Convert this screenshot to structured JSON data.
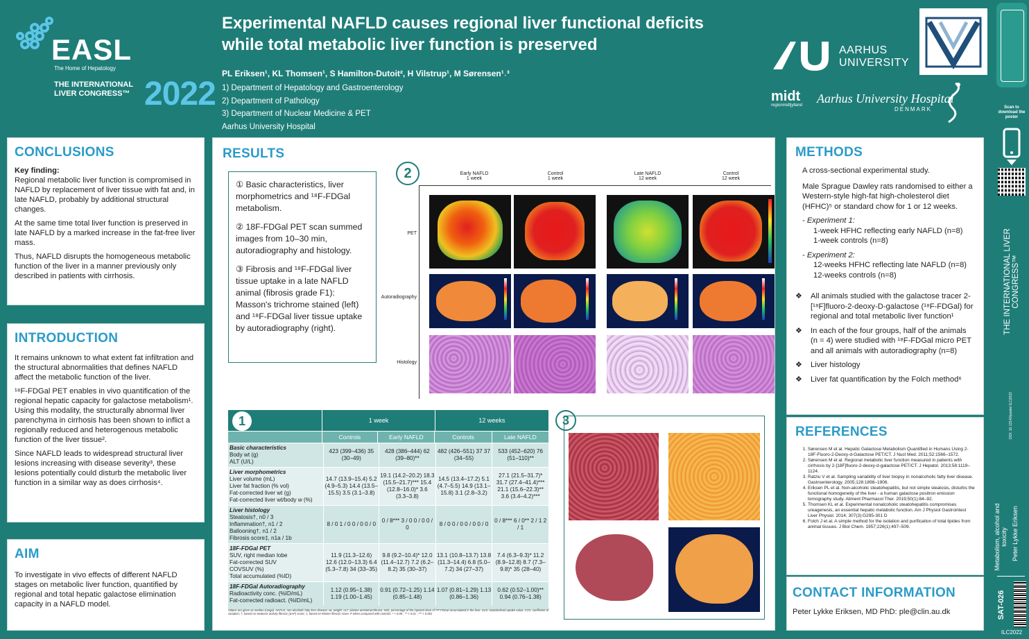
{
  "header": {
    "logo_text": "EASL",
    "logo_tagline": "The Home of Hepatology",
    "congress_line1": "THE INTERNATIONAL",
    "congress_line2": "LIVER CONGRESS™",
    "year": "2022",
    "title_line1": "Experimental NAFLD causes regional liver functional deficits",
    "title_line2": "while total metabolic liver function is preserved",
    "authors": "PL Eriksen¹, KL Thomsen¹, S Hamilton-Dutoit², H Vilstrup¹, M Sørensen¹˒³",
    "affil1": "1) Department of Hepatology and Gastroenterology",
    "affil2": "2) Department of Pathology",
    "affil3": "3) Department of Nuclear Medicine & PET",
    "affil4": "Aarhus University Hospital",
    "au_name1": "AARHUS",
    "au_name2": "UNIVERSITY",
    "midt": "midt",
    "midt_sub": "regionmidtjylland",
    "auh": "Aarhus University Hospital",
    "auh_sub": "DENMARK"
  },
  "conclusions": {
    "title": "CONCLUSIONS",
    "key_label": "Key finding:",
    "p1": "Regional metabolic liver function is compromised in NAFLD by replacement of liver tissue with fat and, in late NAFLD, probably by additional structural changes.",
    "p2": "At the same time total liver function is preserved in late NAFLD by a marked increase in the fat-free liver mass.",
    "p3": "Thus, NAFLD disrupts the homogeneous metabolic function of the liver in a manner previously only described in patients with cirrhosis."
  },
  "introduction": {
    "title": "INTRODUCTION",
    "p1": "It remains unknown to what extent fat infiltration and the structural abnormalities that defines NAFLD affect the metabolic function of the liver.",
    "p2": "¹⁸F-FDGal PET enables in vivo quantification of the regional hepatic capacity for galactose metabolism¹. Using this modality, the structurally abnormal liver parenchyma in cirrhosis has been shown to inflict a regionally reduced and heterogenous metabolic function of the liver tissue².",
    "p3": "Since NAFLD leads to widespread structural liver lesions increasing with disease severity³, these lesions potentially could disturb the metabolic liver function in a similar way as does cirrhosis⁴."
  },
  "aim": {
    "title": "AIM",
    "p1": "To investigate in vivo effects of different NAFLD stages on metabolic liver function, quantified by regional and total hepatic galactose elimination capacity in a NAFLD model."
  },
  "results": {
    "title": "RESULTS",
    "item1": "① Basic characteristics, liver morphometrics and ¹⁸F-FDGal metabolism.",
    "item2": "② 18F-FDGal PET scan summed images from 10–30 min, autoradiography and histology.",
    "item3": "③ Fibrosis and ¹⁸F-FDGal liver tissue uptake in a late NAFLD animal (fibrosis grade F1): Masson's trichrome stained (left) and ¹⁸F-FDGal liver tissue uptake by autoradiography (right).",
    "fig2_num": "2",
    "fig2_cols": [
      "Early NAFLD\n1 week",
      "Control\n1 week",
      "Late NAFLD\n12 week",
      "Control\n12 week"
    ],
    "fig2_rows": [
      "PET",
      "Autoradiography",
      "Histology"
    ],
    "fig1_num": "1",
    "fig3_num": "3",
    "table": {
      "group1": "1 week",
      "group2": "12 weeks",
      "subheads": [
        "Controls",
        "Early NAFLD",
        "Controls",
        "Late NAFLD"
      ],
      "blocks": [
        {
          "label": "Basic characteristics",
          "rows": [
            "Body wt (g)",
            "ALT (U/L)"
          ],
          "values": [
            "423 (399–436) 35 (30–49)",
            "428 (386–444) 62 (39–80)**",
            "482 (426–551) 37 37 (34–55)",
            "533 (452–620) 76 (51–110)**"
          ]
        },
        {
          "label": "Liver morphometrics",
          "rows": [
            "Liver volume (mL)",
            "Liver fat fraction (% vol)",
            "Fat-corrected liver wt (g)",
            "Fat-corrected liver wt/body w (%)"
          ],
          "values": [
            "14.7 (13.9–15.4) 5.2 (4.9–5.3) 14.4 (13.5–15.5) 3.5 (3.1–3.8)",
            "19.1 (14.2–20.2) 18.3 (15.5–21.7)*** 15.4 (12.8–16.0)* 3.6 (3.3–3.8)",
            "14.5 (13.4–17.2) 5.1 (4.7–5.5) 14.9 (13.1–15.8) 3.1 (2.8–3.2)",
            "27.1 (21.5–31.7)* 31.7 (27.4–41.4)*** 21.1 (15.6–22.3)** 3.6 (3.4–4.2)***"
          ]
        },
        {
          "label": "Liver histology",
          "rows": [
            "Steatosis†, n0 / 3",
            "Inflammation†, n1 / 2",
            "Ballooning†, n1 / 2",
            "Fibrosis score‡, n1a / 1b"
          ],
          "values": [
            "8 / 0 1 / 0 0 / 0 0 / 0",
            "0 / 8*** 3 / 0 0 / 0 0 / 0",
            "8 / 0 0 / 0 0 / 0 0 / 0",
            "0 / 8*** 6 / 0** 2 / 1 2 / 1"
          ]
        },
        {
          "label": "18F-FDGal PET",
          "rows": [
            "SUV, right median lobe",
            "Fat-corrected SUV",
            "COVSUV (%)",
            "Total accumulated (%ID)"
          ],
          "values": [
            "11.9 (11.3–12.6) 12.6 (12.0–13.3) 6.4 (5.3–7.8) 34 (33–35)",
            "9.8 (9.2–10.4)* 12.0 (11.4–12.7) 7.2 (6.2–8.2) 35 (30–37)",
            "13.1 (10.8–13.7) 13.8 (11.3–14.4) 6.8 (5.0–7.2) 34 (27–37)",
            "7.4 (6.3–9.3)* 11.2 (8.9–12.8) 8.7 (7.3–9.8)* 35 (28–40)"
          ]
        },
        {
          "label": "18F-FDGal Autoradiography",
          "rows": [
            "Radioactivity conc. (%ID/mL)",
            "Fat-corrected radioact. (%ID/mL)"
          ],
          "values": [
            "1.12 (0.95–1.38) 1.19 (1.00–1.45)",
            "0.91 (0.72–1.25) 1.14 (0.85–1.48)",
            "1.07 (0.81–1.29) 1.13 (0.86–1.36)",
            "0.62 (0.52–1.00)** 0.94 (0.76–1.38)"
          ]
        }
      ],
      "footnote": "Values are given as median (range). NAFLD, non-alcoholic fatty liver disease; wt, weight; ALT, alanine aminotransferase; %ID, percentage of the injected dose of ¹⁸F-FDGal accumulated in the liver; SUV, standardised uptake value; COV, coefficient of variation; †, based on steatosis activity fibrosis (SAF) score; ‡, based on Kleiner fibrosis score. P when compared with controls: * < 0.05 ; ** < 0.01 ; *** < 0.001"
    }
  },
  "methods": {
    "title": "METHODS",
    "p1": "A cross-sectional experimental study.",
    "p2": "Male Sprague Dawley rats randomised to either a Western-style high-fat high-cholesterol diet (HFHC)⁵ or standard chow for 1 or 12 weeks.",
    "exp1_label": "- Experiment 1:",
    "exp1_a": "1-week HFHC reflecting early NAFLD (n=8)",
    "exp1_b": "1-week controls (n=8)",
    "exp2_label": "- Experiment 2:",
    "exp2_a": "12-weeks HFHC reflecting late NAFLD (n=8)",
    "exp2_b": "12-weeks controls (n=8)",
    "b1": "All animals studied with the galactose tracer 2-[¹⁸F]fluoro-2-deoxy-D-galactose (¹⁸F-FDGal) for regional and total metabolic liver function¹",
    "b2": "In each of the four groups, half of the animals (n = 4) were studied with ¹⁸F-FDGal micro PET and all animals with autoradiography (n=8)",
    "b3": "Liver histology",
    "b4": "Liver fat quantification by the Folch method⁶"
  },
  "references": {
    "title": "REFERENCES",
    "items": [
      "Sørensen M et al. Hepatic Galactose Metabolism Quantified in Humans Using 2-18F-Fluoro-2-Deoxy-d-Galactose PET/CT. J Nucl Med. 2011;52:1566–1572.",
      "Sørensen M et al. Regional metabolic liver function measured in patients with cirrhosis by 2-[18F]fluoro-2-deoxy-d-galactose PET/CT. J Hepatol. 2013;58:1119–1124.",
      "Ratziu V et al. Sampling variability of liver biopsy in nonalcoholic fatty liver disease. Gastroenterology. 2005;128:1898–1906.",
      "Eriksen PL et al. Non-alcoholic steatohepatitis, but not simple steatosis, disturbs the functional homogeneity of the liver - a human galactose positron emission tomography study. Aliment Pharmacol Ther. 2019;50(1):84–92.",
      "Thomsen KL et al. Experimental nonalcoholic steatohepatitis compromises ureagenesis, an essential hepatic metabolic function. Am J Physiol Gastrointest Liver Physiol. 2014; 307(3):G295-301 D",
      "Folch J et al. A simple method for the isolation and purification of total lipides from animal tissues. J Biol Chem. 1957;226(1):497–509."
    ]
  },
  "contact": {
    "title": "CONTACT INFORMATION",
    "text": "Peter Lykke Eriksen, MD PhD: ple@clin.au.dk"
  },
  "sidebar": {
    "scan_text": "Scan to download the poster",
    "congress_vertical": "THE INTERNATIONAL LIVER CONGRESS™",
    "doi": "DOI: 10.13140/poster.ILC2022",
    "topic": "Metabolism, alcohol and toxicity",
    "author": "Peter Lykke Eriksen",
    "code": "SAT-026",
    "ilc": "ILC2022"
  }
}
